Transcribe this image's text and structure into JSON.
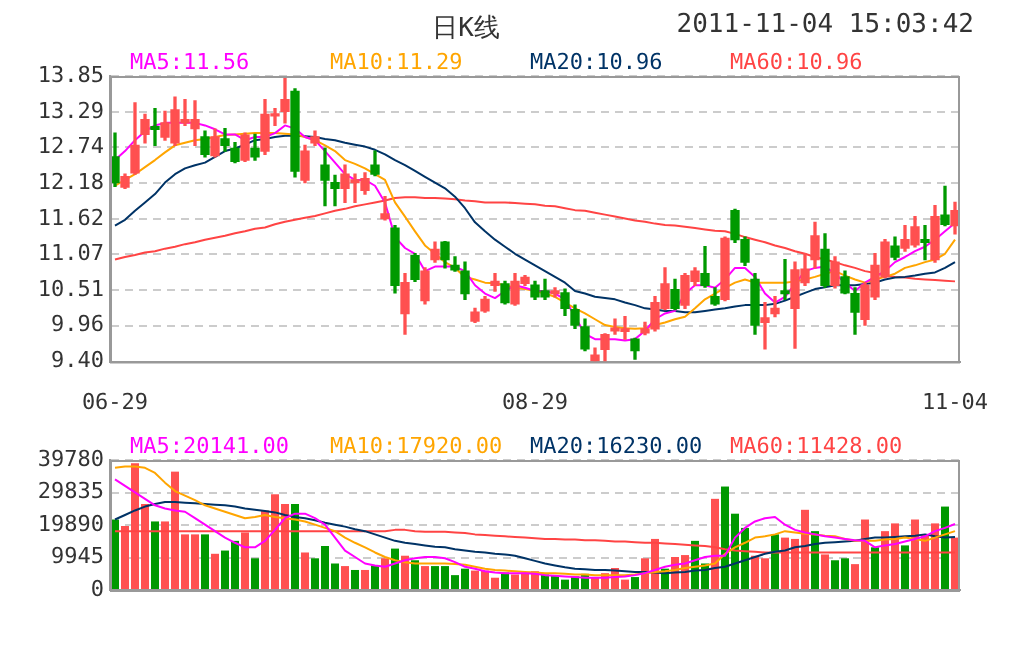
{
  "chart_data": [
    {
      "type": "candlestick",
      "title": "日K线",
      "annotations": [
        "2011-11-04 15:03:42"
      ],
      "categories": [
        "06-29",
        null,
        null,
        null,
        null,
        null,
        null,
        null,
        null,
        null,
        null,
        null,
        null,
        null,
        null,
        null,
        null,
        null,
        null,
        null,
        null,
        null,
        null,
        null,
        null,
        null,
        null,
        null,
        null,
        null,
        null,
        null,
        null,
        null,
        null,
        null,
        null,
        null,
        null,
        null,
        null,
        null,
        "08-29",
        null,
        null,
        null,
        null,
        null,
        null,
        null,
        null,
        null,
        null,
        null,
        null,
        null,
        null,
        null,
        null,
        null,
        null,
        null,
        null,
        null,
        null,
        null,
        null,
        null,
        null,
        null,
        null,
        null,
        null,
        null,
        null,
        null,
        null,
        null,
        null,
        null,
        null,
        null,
        null,
        null,
        "11-04"
      ],
      "ohlc": [
        [
          12.59,
          12.96,
          12.13,
          12.19
        ],
        [
          12.12,
          12.32,
          12.1,
          12.28
        ],
        [
          12.34,
          13.43,
          12.32,
          12.77
        ],
        [
          12.94,
          13.25,
          12.81,
          13.17
        ],
        [
          13.06,
          13.34,
          12.77,
          13.02
        ],
        [
          12.9,
          13.3,
          12.85,
          13.12
        ],
        [
          12.81,
          13.52,
          12.77,
          13.32
        ],
        [
          13.12,
          13.48,
          13.08,
          13.17
        ],
        [
          13.03,
          13.46,
          12.77,
          13.17
        ],
        [
          12.9,
          12.99,
          12.59,
          12.63
        ],
        [
          12.61,
          13.02,
          12.59,
          12.9
        ],
        [
          12.87,
          13.03,
          12.68,
          12.77
        ],
        [
          12.72,
          12.81,
          12.5,
          12.52
        ],
        [
          12.54,
          12.96,
          12.52,
          12.93
        ],
        [
          12.72,
          12.94,
          12.54,
          12.59
        ],
        [
          12.68,
          13.48,
          12.63,
          13.25
        ],
        [
          13.23,
          13.34,
          13.08,
          13.25
        ],
        [
          13.3,
          13.83,
          13.12,
          13.48
        ],
        [
          13.61,
          13.65,
          12.28,
          12.37
        ],
        [
          12.23,
          12.77,
          12.19,
          12.68
        ],
        [
          12.81,
          12.99,
          12.77,
          12.9
        ],
        [
          12.46,
          12.72,
          11.83,
          12.23
        ],
        [
          12.19,
          12.3,
          11.83,
          12.1
        ],
        [
          12.1,
          12.46,
          11.88,
          12.32
        ],
        [
          12.19,
          12.32,
          11.88,
          12.23
        ],
        [
          12.07,
          12.34,
          12.01,
          12.25
        ],
        [
          12.46,
          12.68,
          12.3,
          12.32
        ],
        [
          11.63,
          11.97,
          11.61,
          11.7
        ],
        [
          11.48,
          11.52,
          10.47,
          10.59
        ],
        [
          10.15,
          10.77,
          9.83,
          10.63
        ],
        [
          11.05,
          11.08,
          10.65,
          10.68
        ],
        [
          10.35,
          10.86,
          10.3,
          10.81
        ],
        [
          10.99,
          11.26,
          10.95,
          11.15
        ],
        [
          11.26,
          11.27,
          10.86,
          10.99
        ],
        [
          10.9,
          11.03,
          10.81,
          10.83
        ],
        [
          10.81,
          10.95,
          10.37,
          10.46
        ],
        [
          10.03,
          10.23,
          10.01,
          10.17
        ],
        [
          10.19,
          10.41,
          10.17,
          10.37
        ],
        [
          10.59,
          10.77,
          10.5,
          10.65
        ],
        [
          10.61,
          10.65,
          10.3,
          10.32
        ],
        [
          10.3,
          10.77,
          10.28,
          10.65
        ],
        [
          10.62,
          10.74,
          10.59,
          10.71
        ],
        [
          10.59,
          10.65,
          10.37,
          10.41
        ],
        [
          10.5,
          10.68,
          10.37,
          10.41
        ],
        [
          10.46,
          10.55,
          10.41,
          10.5
        ],
        [
          10.47,
          10.53,
          10.12,
          10.23
        ],
        [
          10.21,
          10.28,
          9.92,
          9.97
        ],
        [
          9.94,
          10.06,
          9.57,
          9.6
        ],
        [
          9.41,
          9.61,
          9.4,
          9.5
        ],
        [
          9.59,
          9.83,
          9.4,
          9.82
        ],
        [
          9.88,
          10.06,
          9.83,
          9.92
        ],
        [
          9.87,
          10.1,
          9.75,
          9.91
        ],
        [
          9.75,
          9.76,
          9.44,
          9.57
        ],
        [
          9.85,
          10.01,
          9.82,
          9.91
        ],
        [
          9.91,
          10.41,
          9.88,
          10.32
        ],
        [
          10.23,
          10.86,
          10.21,
          10.61
        ],
        [
          10.52,
          10.68,
          10.21,
          10.23
        ],
        [
          10.28,
          10.77,
          10.23,
          10.74
        ],
        [
          10.65,
          10.86,
          10.59,
          10.81
        ],
        [
          10.77,
          11.19,
          10.56,
          10.59
        ],
        [
          10.41,
          10.55,
          10.28,
          10.3
        ],
        [
          10.37,
          11.34,
          10.35,
          11.32
        ],
        [
          11.75,
          11.77,
          11.26,
          11.3
        ],
        [
          11.3,
          11.34,
          10.9,
          10.95
        ],
        [
          10.68,
          10.77,
          9.83,
          9.97
        ],
        [
          10.01,
          10.32,
          9.6,
          10.08
        ],
        [
          10.15,
          10.41,
          10.1,
          10.23
        ],
        [
          10.5,
          10.99,
          10.37,
          10.46
        ],
        [
          10.23,
          10.95,
          9.61,
          10.83
        ],
        [
          10.63,
          11.08,
          10.59,
          10.84
        ],
        [
          10.99,
          11.57,
          10.86,
          11.36
        ],
        [
          11.15,
          11.39,
          10.56,
          10.59
        ],
        [
          10.59,
          11.03,
          10.55,
          10.95
        ],
        [
          10.72,
          10.81,
          10.46,
          10.47
        ],
        [
          10.46,
          10.55,
          9.83,
          10.17
        ],
        [
          10.06,
          10.63,
          9.97,
          10.59
        ],
        [
          10.41,
          11.08,
          10.37,
          10.9
        ],
        [
          10.72,
          11.3,
          10.71,
          11.26
        ],
        [
          11.2,
          11.34,
          10.99,
          11.03
        ],
        [
          11.17,
          11.52,
          11.12,
          11.3
        ],
        [
          11.22,
          11.66,
          11.19,
          11.5
        ],
        [
          11.3,
          11.52,
          10.99,
          11.26
        ],
        [
          10.99,
          11.83,
          10.95,
          11.66
        ],
        [
          11.68,
          12.13,
          11.52,
          11.54
        ],
        [
          11.52,
          11.88,
          11.39,
          11.75
        ]
      ],
      "colors": [
        "#009900",
        "#ff5050",
        "#ff5050",
        "#ff5050",
        "#009900",
        "#ff5050",
        "#ff5050",
        "#ff5050",
        "#ff5050",
        "#009900",
        "#ff5050",
        "#009900",
        "#009900",
        "#ff5050",
        "#009900",
        "#ff5050",
        "#ff5050",
        "#ff5050",
        "#009900",
        "#ff5050",
        "#ff5050",
        "#009900",
        "#009900",
        "#ff5050",
        "#ff5050",
        "#ff5050",
        "#009900",
        "#ff5050",
        "#009900",
        "#ff5050",
        "#009900",
        "#ff5050",
        "#ff5050",
        "#009900",
        "#009900",
        "#009900",
        "#ff5050",
        "#ff5050",
        "#ff5050",
        "#009900",
        "#ff5050",
        "#ff5050",
        "#009900",
        "#009900",
        "#ff5050",
        "#009900",
        "#009900",
        "#009900",
        "#ff5050",
        "#ff5050",
        "#ff5050",
        "#ff5050",
        "#009900",
        "#ff5050",
        "#ff5050",
        "#ff5050",
        "#009900",
        "#ff5050",
        "#ff5050",
        "#009900",
        "#009900",
        "#ff5050",
        "#009900",
        "#009900",
        "#009900",
        "#ff5050",
        "#ff5050",
        "#009900",
        "#ff5050",
        "#ff5050",
        "#ff5050",
        "#009900",
        "#ff5050",
        "#009900",
        "#009900",
        "#ff5050",
        "#ff5050",
        "#ff5050",
        "#009900",
        "#ff5050",
        "#ff5050",
        "#009900",
        "#ff5050",
        "#009900",
        "#ff5050"
      ],
      "series": [
        {
          "name": "MA5:11.56",
          "type": "line",
          "color": "#ff00ff",
          "values": [
            12.54,
            12.68,
            12.85,
            12.99,
            13.08,
            13.12,
            13.12,
            13.12,
            13.12,
            13.08,
            13.02,
            12.94,
            12.94,
            12.85,
            12.9,
            12.9,
            12.96,
            13.08,
            13.03,
            12.9,
            12.85,
            12.68,
            12.5,
            12.32,
            12.23,
            12.23,
            12.14,
            11.88,
            11.34,
            11.17,
            11.08,
            10.81,
            10.88,
            10.88,
            10.88,
            10.81,
            10.59,
            10.46,
            10.39,
            10.5,
            10.59,
            10.55,
            10.5,
            10.5,
            10.46,
            10.37,
            null,
            9.83,
            9.75,
            9.75,
            9.75,
            9.73,
            9.75,
            9.88,
            10.06,
            10.15,
            10.19,
            10.46,
            10.59,
            10.59,
            10.55,
            10.68,
            10.86,
            10.86,
            10.72,
            10.46,
            10.32,
            10.41,
            null,
            10.81,
            10.86,
            10.88,
            10.77,
            10.63,
            10.5,
            10.63,
            10.72,
            10.81,
            10.95,
            11.03,
            11.12,
            11.19,
            11.3,
            11.43,
            11.56
          ]
        },
        {
          "name": "MA10:11.29",
          "type": "line",
          "color": "#ffa500",
          "values": [
            12.14,
            12.23,
            12.32,
            12.43,
            12.54,
            12.66,
            12.77,
            12.81,
            12.85,
            12.87,
            12.9,
            12.93,
            12.94,
            12.95,
            12.96,
            12.96,
            12.96,
            12.95,
            12.94,
            12.9,
            12.85,
            12.77,
            12.68,
            12.54,
            12.48,
            12.41,
            12.32,
            12.23,
            11.88,
            11.66,
            11.43,
            11.21,
            11.08,
            10.95,
            10.86,
            10.72,
            10.68,
            10.63,
            10.62,
            10.59,
            10.55,
            10.53,
            10.5,
            10.46,
            10.41,
            10.32,
            10.23,
            10.15,
            10.06,
            9.97,
            9.94,
            9.92,
            9.91,
            9.92,
            9.97,
            10.01,
            10.06,
            10.1,
            10.23,
            10.37,
            10.46,
            10.55,
            10.63,
            10.68,
            10.63,
            10.63,
            10.63,
            10.63,
            10.65,
            10.68,
            10.72,
            10.77,
            10.81,
            10.74,
            10.68,
            10.63,
            10.68,
            10.72,
            10.77,
            10.86,
            10.9,
            10.95,
            10.99,
            11.08,
            11.3
          ]
        },
        {
          "name": "MA20:10.96",
          "type": "line",
          "color": "#003366",
          "values": [
            11.52,
            11.61,
            11.75,
            11.88,
            12.01,
            12.19,
            12.32,
            12.41,
            12.46,
            12.5,
            12.59,
            12.68,
            12.72,
            12.78,
            12.85,
            12.87,
            12.9,
            12.92,
            12.92,
            12.91,
            12.9,
            12.87,
            12.85,
            12.81,
            12.78,
            12.75,
            12.7,
            12.63,
            12.54,
            12.46,
            12.37,
            12.28,
            12.19,
            12.1,
            11.97,
            11.79,
            11.57,
            11.43,
            11.3,
            11.19,
            11.08,
            10.99,
            10.9,
            10.81,
            10.72,
            10.63,
            10.5,
            10.46,
            10.41,
            10.39,
            10.37,
            10.32,
            10.28,
            10.23,
            10.21,
            10.19,
            10.19,
            10.17,
            10.17,
            10.19,
            10.21,
            10.23,
            10.26,
            10.28,
            10.28,
            10.28,
            10.3,
            10.35,
            10.41,
            10.47,
            10.53,
            10.56,
            10.59,
            10.59,
            10.59,
            10.61,
            10.63,
            10.68,
            10.71,
            10.72,
            10.74,
            10.77,
            10.79,
            10.86,
            10.95
          ]
        },
        {
          "name": "MA60:10.96",
          "type": "line",
          "color": "#ff4444",
          "values": [
            10.99,
            11.03,
            11.06,
            11.1,
            11.12,
            11.16,
            11.19,
            11.23,
            11.26,
            11.3,
            11.33,
            11.36,
            11.4,
            11.43,
            11.47,
            11.49,
            11.54,
            11.58,
            11.61,
            11.64,
            11.67,
            11.71,
            11.75,
            11.78,
            11.82,
            11.85,
            11.88,
            11.91,
            11.95,
            11.96,
            11.96,
            11.95,
            11.95,
            11.94,
            11.93,
            11.91,
            11.9,
            11.88,
            11.88,
            11.88,
            11.87,
            11.86,
            11.85,
            11.83,
            11.82,
            11.79,
            11.76,
            11.75,
            11.72,
            11.69,
            11.66,
            11.63,
            11.6,
            11.58,
            11.55,
            11.53,
            11.52,
            11.5,
            11.48,
            11.46,
            11.44,
            11.43,
            11.39,
            11.34,
            11.3,
            11.26,
            11.21,
            11.17,
            11.12,
            11.08,
            11.03,
            10.99,
            10.95,
            10.9,
            10.86,
            10.81,
            10.78,
            10.74,
            10.72,
            10.71,
            10.69,
            10.68,
            10.67,
            10.66,
            10.65
          ]
        }
      ],
      "ylim": [
        9.4,
        13.85
      ],
      "yticks": [
        {
          "value": 9.4,
          "label": "9.40"
        },
        9.96,
        10.51,
        11.07,
        11.62,
        12.18,
        12.74,
        13.29,
        13.85
      ],
      "grid": "y",
      "legend": "top",
      "marker": "none"
    },
    {
      "type": "bar",
      "categories": [
        null,
        null,
        null,
        null,
        null,
        null,
        null,
        null,
        null,
        null,
        null,
        null,
        null,
        null,
        null,
        null,
        null,
        null,
        null,
        null,
        null,
        null,
        null,
        null,
        null,
        null,
        null,
        null,
        null,
        null,
        null,
        null,
        null,
        null,
        null,
        null,
        null,
        null,
        null,
        null,
        null,
        null,
        null,
        null,
        null,
        null,
        null,
        null,
        null,
        null,
        null,
        null,
        null,
        null,
        null,
        null,
        null,
        null,
        null,
        null,
        null,
        null,
        null,
        null,
        null,
        null,
        null,
        null,
        null,
        null,
        null,
        null,
        null,
        null,
        null,
        null,
        null,
        null,
        null,
        null,
        null,
        null,
        null,
        null,
        null
      ],
      "series": [
        {
          "type": "bar",
          "values": [
            21570,
            19590,
            38790,
            26320,
            20980,
            20980,
            36220,
            17020,
            17020,
            17020,
            11080,
            12070,
            15040,
            17610,
            9700,
            24340,
            29290,
            26320,
            26320,
            11480,
            9700,
            13460,
            8110,
            7320,
            6130,
            6130,
            7520,
            9700,
            12670,
            10490,
            9100,
            7320,
            7320,
            7320,
            4550,
            6530,
            5940,
            5940,
            3760,
            5340,
            4750,
            5340,
            5740,
            4750,
            4550,
            3170,
            4160,
            4950,
            3760,
            5150,
            6730,
            3170,
            3960,
            9700,
            15630,
            6530,
            10090,
            10690,
            15040,
            8110,
            27900,
            31660,
            23350,
            19000,
            10490,
            9700,
            17020,
            16030,
            15630,
            24540,
            18010,
            10880,
            9100,
            9700,
            7920,
            21570,
            13060,
            18010,
            20380,
            13650,
            21570,
            17020,
            20380,
            25530,
            16030
          ],
          "colors": [
            "#009900",
            "#ff5050",
            "#ff5050",
            "#ff5050",
            "#009900",
            "#ff5050",
            "#ff5050",
            "#ff5050",
            "#ff5050",
            "#009900",
            "#ff5050",
            "#009900",
            "#009900",
            "#ff5050",
            "#009900",
            "#ff5050",
            "#ff5050",
            "#ff5050",
            "#009900",
            "#ff5050",
            "#009900",
            "#009900",
            "#009900",
            "#ff5050",
            "#009900",
            "#ff5050",
            "#009900",
            "#ff5050",
            "#009900",
            "#ff5050",
            "#009900",
            "#ff5050",
            "#009900",
            "#009900",
            "#009900",
            "#009900",
            "#ff5050",
            "#ff5050",
            "#ff5050",
            "#009900",
            "#ff5050",
            "#ff5050",
            "#ff5050",
            "#009900",
            "#009900",
            "#009900",
            "#009900",
            "#009900",
            "#ff5050",
            "#ff5050",
            "#ff5050",
            "#ff5050",
            "#009900",
            "#ff5050",
            "#ff5050",
            "#009900",
            "#ff5050",
            "#ff5050",
            "#009900",
            "#009900",
            "#ff5050",
            "#009900",
            "#009900",
            "#009900",
            "#ff5050",
            "#ff5050",
            "#009900",
            "#ff5050",
            "#ff5050",
            "#ff5050",
            "#009900",
            "#ff5050",
            "#009900",
            "#009900",
            "#ff5050",
            "#ff5050",
            "#009900",
            "#ff5050",
            "#ff5050",
            "#009900",
            "#ff5050",
            "#ff5050",
            "#ff5050",
            "#009900",
            "#ff5050"
          ]
        },
        {
          "name": "MA5:20141.00",
          "type": "line",
          "color": "#ff00ff",
          "values": [
            33840,
            31860,
            29880,
            27900,
            25920,
            24940,
            24340,
            23950,
            21970,
            19990,
            18010,
            16030,
            14450,
            13060,
            13060,
            15040,
            18400,
            21970,
            23350,
            23350,
            21970,
            19990,
            16030,
            12070,
            10090,
            8110,
            7520,
            7120,
            8110,
            9100,
            9700,
            10090,
            10090,
            9700,
            8510,
            7120,
            6530,
            5740,
            5340,
            5150,
            5150,
            5150,
            4950,
            4550,
            4350,
            4160,
            3960,
            3760,
            3760,
            3760,
            3960,
            4160,
            4550,
            5150,
            6130,
            7120,
            7720,
            8110,
            9100,
            10090,
            10490,
            10490,
            16030,
            19000,
            20980,
            21970,
            22360,
            19990,
            18400,
            17610,
            17020,
            16430,
            16030,
            15630,
            15240,
            15040,
            13060,
            13650,
            14050,
            14840,
            15630,
            16430,
            18010,
            19000,
            20190
          ]
        },
        {
          "name": "MA10:17920.00",
          "type": "line",
          "color": "#ffa500",
          "values": [
            37400,
            37800,
            37800,
            37400,
            35820,
            32850,
            30280,
            28890,
            27510,
            25920,
            24940,
            23950,
            22960,
            21970,
            22360,
            22960,
            22360,
            21970,
            21570,
            20980,
            19990,
            19000,
            18010,
            16030,
            14450,
            13060,
            11480,
            10090,
            9100,
            8510,
            8110,
            8110,
            8110,
            8110,
            7920,
            7720,
            7120,
            6530,
            6130,
            5940,
            5740,
            5540,
            5340,
            5150,
            5150,
            4950,
            4750,
            4750,
            4550,
            4550,
            4550,
            4550,
            4750,
            5150,
            5540,
            5740,
            6130,
            6730,
            7120,
            7520,
            8110,
            11080,
            13060,
            14450,
            16030,
            16430,
            17020,
            18010,
            17610,
            17220,
            17020,
            16620,
            16430,
            15630,
            15040,
            15040,
            15040,
            15440,
            15630,
            16030,
            15630,
            15040,
            16030,
            17020,
            18010
          ]
        },
        {
          "name": "MA20:16230.00",
          "type": "line",
          "color": "#003366",
          "values": [
            21570,
            22960,
            24340,
            25530,
            26320,
            26910,
            26910,
            26720,
            26520,
            26320,
            26120,
            25920,
            25530,
            24940,
            24540,
            24140,
            23750,
            22960,
            22360,
            21970,
            21370,
            20580,
            19990,
            19390,
            18600,
            18010,
            17020,
            16030,
            15040,
            14450,
            14050,
            13650,
            13260,
            13060,
            12470,
            12070,
            11680,
            11480,
            11080,
            10880,
            10490,
            9700,
            8910,
            8110,
            7520,
            6930,
            6530,
            6330,
            6130,
            6130,
            5940,
            5740,
            5540,
            5540,
            5340,
            5150,
            5340,
            5540,
            5940,
            6130,
            6730,
            7120,
            8110,
            9100,
            10090,
            11080,
            11680,
            12070,
            13060,
            13460,
            14050,
            14450,
            14640,
            14840,
            15040,
            15630,
            16030,
            16030,
            16230,
            16430,
            16620,
            17020,
            16430,
            16030,
            16230
          ]
        },
        {
          "name": "MA60:11428.00",
          "type": "line",
          "color": "#ff4444",
          "values": [
            18010,
            18010,
            18010,
            18010,
            18010,
            18010,
            18010,
            18010,
            18010,
            18010,
            18010,
            18010,
            18010,
            18010,
            18010,
            18010,
            18010,
            18010,
            18010,
            18010,
            18010,
            18010,
            18010,
            18010,
            18010,
            18010,
            18010,
            18010,
            18400,
            18400,
            18010,
            17810,
            17810,
            17810,
            17610,
            17420,
            17020,
            16820,
            16620,
            16430,
            16230,
            16030,
            15830,
            15630,
            15630,
            15440,
            15440,
            15240,
            15240,
            15040,
            14840,
            14840,
            14640,
            14450,
            14450,
            14250,
            14050,
            13850,
            13650,
            13460,
            13060,
            12470,
            12070,
            11870,
            11680,
            11480,
            11480,
            11480,
            11480,
            11480,
            11480,
            11480,
            11480,
            11480,
            11480,
            11480,
            11480,
            11480,
            11480,
            11480,
            11480,
            11480,
            11480,
            11480,
            11480
          ]
        }
      ],
      "ylim": [
        0,
        39780
      ],
      "yticks": [
        0,
        9945,
        19890,
        29835,
        39780
      ],
      "grid": "y",
      "legend": "top",
      "marker": "none",
      "tick_labels": "y"
    }
  ]
}
